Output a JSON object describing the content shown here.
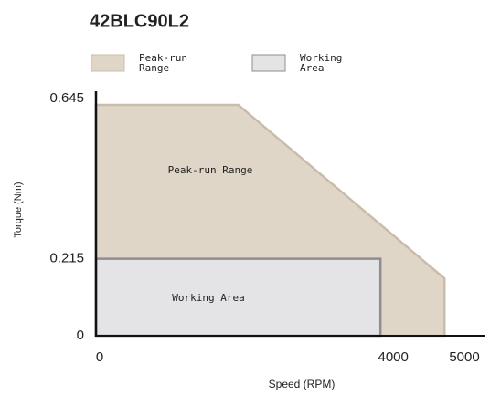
{
  "chart_data": {
    "type": "area",
    "title": "42BLC90L2",
    "x_label": "Speed (RPM)",
    "y_label": "Torque (Nm)",
    "series": [
      {
        "name": "Peak-run Range",
        "color": "#e0d6c8",
        "stroke": "#c9bcab",
        "x": [
          0,
          2000,
          4900,
          4900
        ],
        "values": [
          0.645,
          0.645,
          0.16,
          0
        ]
      },
      {
        "name": "Working Area",
        "color": "#e4e4e7",
        "stroke": "#8e8e8e",
        "x": [
          0,
          4000,
          4000
        ],
        "values": [
          0.215,
          0.215,
          0
        ]
      }
    ],
    "xlim": [
      0,
      5000
    ],
    "ylim": [
      0,
      0.645
    ],
    "xticks": [
      0,
      4000,
      5000
    ],
    "yticks": [
      0,
      0.215,
      0.645
    ]
  }
}
